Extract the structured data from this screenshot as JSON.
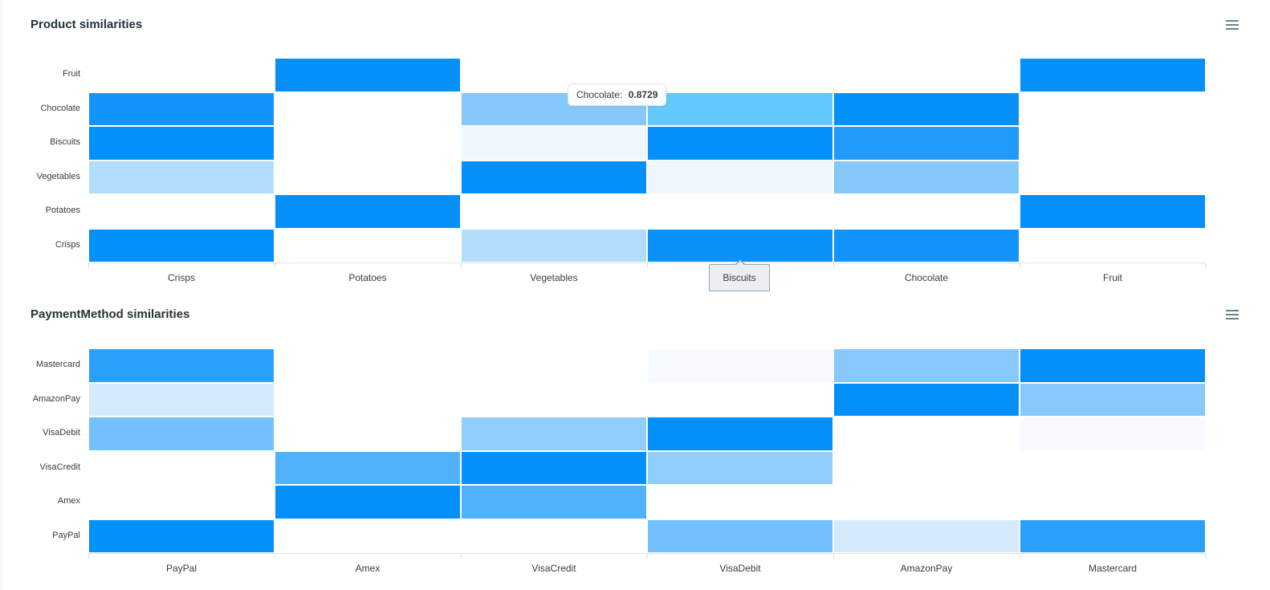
{
  "chart_data": [
    {
      "type": "heatmap",
      "title": "Product similarities",
      "x_categories": [
        "Crisps",
        "Potatoes",
        "Vegetables",
        "Biscuits",
        "Chocolate",
        "Fruit"
      ],
      "y_categories_top_to_bottom": [
        "Fruit",
        "Chocolate",
        "Biscuits",
        "Vegetables",
        "Potatoes",
        "Crisps"
      ],
      "values": [
        [
          0,
          1.0,
          0,
          0,
          0,
          1.0
        ],
        [
          0.93,
          0,
          0.48,
          0.8729,
          1.0,
          0
        ],
        [
          1.0,
          0,
          0.07,
          1.0,
          0.87,
          0
        ],
        [
          0.3,
          0,
          1.0,
          0.07,
          0.48,
          0
        ],
        [
          0,
          1.0,
          0,
          0,
          0,
          1.0
        ],
        [
          1.0,
          0,
          0.3,
          0.96,
          0.93,
          0
        ]
      ],
      "colors": [
        [
          "#ffffff",
          "#0390fb",
          "#ffffff",
          "#ffffff",
          "#ffffff",
          "#0390fb"
        ],
        [
          "#1294fb",
          "#ffffff",
          "#85c8fc",
          "#62c9fc",
          "#0390fb",
          "#ffffff"
        ],
        [
          "#0390fb",
          "#ffffff",
          "#eef6fe",
          "#0390fb",
          "#219bfb",
          "#ffffff"
        ],
        [
          "#b3ddfd",
          "#ffffff",
          "#0390fb",
          "#eef6fe",
          "#85c8fc",
          "#ffffff"
        ],
        [
          "#ffffff",
          "#0390fb",
          "#ffffff",
          "#ffffff",
          "#ffffff",
          "#0390fb"
        ],
        [
          "#0390fb",
          "#ffffff",
          "#b3ddfd",
          "#0a92fb",
          "#1294fb",
          "#ffffff"
        ]
      ],
      "tooltip": {
        "series": "Chocolate:",
        "value": "0.8729"
      },
      "xaxis_tooltip": "Biscuits",
      "grid": false,
      "legend": "none"
    },
    {
      "type": "heatmap",
      "title": "PaymentMethod similarities",
      "x_categories": [
        "PayPal",
        "Amex",
        "VisaCredit",
        "VisaDebit",
        "AmazonPay",
        "Mastercard"
      ],
      "y_categories_top_to_bottom": [
        "Mastercard",
        "AmazonPay",
        "VisaDebit",
        "VisaCredit",
        "Amex",
        "PayPal"
      ],
      "values": [
        [
          0.85,
          0,
          0,
          0.03,
          0.48,
          1.0
        ],
        [
          0.16,
          0,
          0,
          0,
          1.0,
          0.48
        ],
        [
          0.55,
          0,
          0.45,
          1.0,
          0,
          0.03
        ],
        [
          0,
          0.7,
          1.0,
          0.45,
          0,
          0
        ],
        [
          0,
          1.0,
          0.7,
          0,
          0,
          0
        ],
        [
          1.0,
          0,
          0,
          0.55,
          0.16,
          0.85
        ]
      ],
      "colors": [
        [
          "#2aa0fb",
          "#ffffff",
          "#ffffff",
          "#f7fbff",
          "#87c9fc",
          "#0390fb"
        ],
        [
          "#d5eafd",
          "#ffffff",
          "#ffffff",
          "#ffffff",
          "#0390fb",
          "#87c9fc"
        ],
        [
          "#73c1fc",
          "#ffffff",
          "#8fcdfc",
          "#0390fb",
          "#ffffff",
          "#f7fbff"
        ],
        [
          "#ffffff",
          "#50b1fc",
          "#0390fb",
          "#8fcdfc",
          "#ffffff",
          "#ffffff"
        ],
        [
          "#ffffff",
          "#0390fb",
          "#50b1fc",
          "#ffffff",
          "#ffffff",
          "#ffffff"
        ],
        [
          "#0390fb",
          "#ffffff",
          "#ffffff",
          "#73c1fc",
          "#d5eafd",
          "#2aa0fb"
        ]
      ],
      "grid": false,
      "legend": "none"
    }
  ],
  "charts": [
    {
      "title": "Product similarities",
      "menu_icon": "hamburger-menu-icon"
    },
    {
      "title": "PaymentMethod similarities",
      "menu_icon": "hamburger-menu-icon"
    }
  ]
}
